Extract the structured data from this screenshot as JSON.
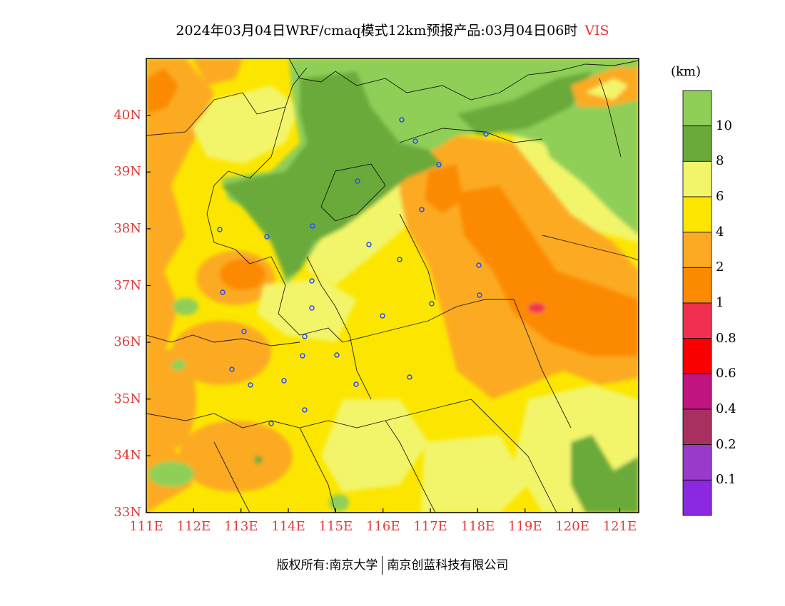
{
  "title": {
    "main": "2024年03月04日WRF/cmaq模式12km预报产品:03月04日06时",
    "variable": "VIS"
  },
  "map": {
    "lat_labels": [
      "40N",
      "39N",
      "38N",
      "37N",
      "36N",
      "35N",
      "34N",
      "33N"
    ],
    "lon_labels": [
      "111E",
      "112E",
      "113E",
      "114E",
      "115E",
      "116E",
      "117E",
      "118E",
      "119E",
      "120E",
      "121E"
    ],
    "lon_range": [
      111,
      121.4
    ],
    "lat_range": [
      33,
      41
    ]
  },
  "legend": {
    "unit": "(km)",
    "labels": [
      "10",
      "8",
      "6",
      "4",
      "2",
      "1",
      "0.8",
      "0.6",
      "0.4",
      "0.2",
      "0.1"
    ],
    "colors": [
      "#8fcf58",
      "#6aaa3a",
      "#f2f56a",
      "#fce600",
      "#fcaa23",
      "#fc8a00",
      "#f03050",
      "#fa0000",
      "#c01480",
      "#a83060",
      "#9a3acc",
      "#8c28e0"
    ]
  },
  "footer": {
    "copyright": "版权所有:南京大学",
    "company": "南京创蓝科技有限公司"
  }
}
